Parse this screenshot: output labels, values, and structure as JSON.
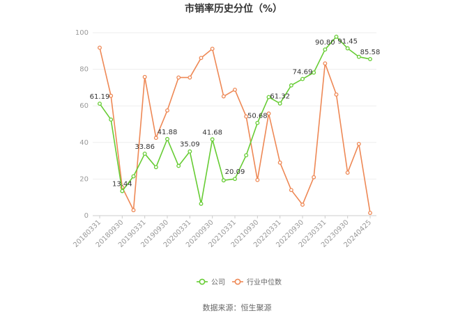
{
  "chart_data": {
    "type": "line",
    "title": "市销率历史分位（%）",
    "ylim": [
      0,
      100
    ],
    "yticks": [
      0,
      20,
      40,
      60,
      80,
      100
    ],
    "x_tick_labels": [
      "20180331",
      "20180930",
      "20190331",
      "20190930",
      "20200331",
      "20200930",
      "20210331",
      "20210930",
      "20220331",
      "20220930",
      "20230331",
      "20230930",
      "20240425"
    ],
    "grid": "horizontal",
    "legend_position": "bottom",
    "series": [
      {
        "name": "公司",
        "color": "#66cc33",
        "values": [
          61.19,
          52.5,
          13.44,
          21.5,
          33.86,
          26.5,
          41.88,
          27.2,
          35.09,
          6.5,
          41.68,
          19.3,
          20.09,
          33.0,
          50.68,
          64.8,
          61.32,
          71.2,
          74.69,
          78.2,
          90.8,
          97.8,
          91.45,
          86.8,
          85.58
        ],
        "labels": {
          "0": "61.19",
          "2": "13.44",
          "4": "33.86",
          "6": "41.88",
          "8": "35.09",
          "10": "41.68",
          "12": "20.09",
          "14": "50.68",
          "16": "61.32",
          "18": "74.69",
          "20": "90.80",
          "22": "91.45",
          "24": "85.58"
        }
      },
      {
        "name": "行业中位数",
        "color": "#ee8855",
        "values": [
          91.8,
          65.5,
          15.5,
          3.0,
          75.8,
          42.5,
          57.5,
          75.5,
          75.5,
          86.2,
          91.2,
          65.2,
          68.8,
          54.2,
          19.5,
          55.8,
          29.0,
          14.0,
          6.0,
          21.0,
          83.2,
          66.2,
          23.5,
          39.2,
          1.5
        ]
      }
    ],
    "source": "数据来源：恒生聚源"
  }
}
